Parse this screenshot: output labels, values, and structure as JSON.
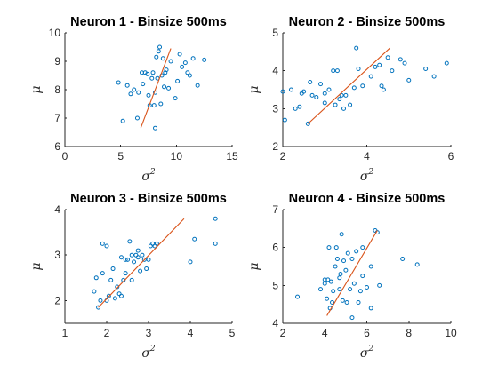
{
  "colors": {
    "points": "#0072BD",
    "fit": "#D95319",
    "axes": "#262626"
  },
  "chart_data": [
    {
      "type": "scatter",
      "title": "Neuron 1 - Binsize 500ms",
      "xlabel": "σ",
      "xlabel_sup": "2",
      "ylabel": "μ",
      "xlim": [
        0,
        15
      ],
      "ylim": [
        6,
        10
      ],
      "xticks": [
        0,
        5,
        10,
        15
      ],
      "yticks": [
        6,
        7,
        8,
        9,
        10
      ],
      "grid": false,
      "fit_line": {
        "x": [
          6.8,
          9.5
        ],
        "y": [
          6.65,
          9.45
        ]
      },
      "points": [
        [
          4.8,
          8.25
        ],
        [
          5.2,
          6.9
        ],
        [
          5.6,
          8.15
        ],
        [
          5.9,
          7.85
        ],
        [
          6.2,
          8.0
        ],
        [
          6.5,
          7.0
        ],
        [
          6.6,
          7.9
        ],
        [
          6.9,
          8.6
        ],
        [
          7.0,
          8.2
        ],
        [
          7.2,
          8.6
        ],
        [
          7.4,
          8.55
        ],
        [
          7.5,
          7.8
        ],
        [
          7.6,
          7.45
        ],
        [
          7.8,
          8.4
        ],
        [
          7.9,
          8.6
        ],
        [
          8.0,
          7.45
        ],
        [
          8.1,
          7.9
        ],
        [
          8.1,
          6.65
        ],
        [
          8.2,
          9.15
        ],
        [
          8.3,
          8.4
        ],
        [
          8.4,
          9.35
        ],
        [
          8.5,
          9.5
        ],
        [
          8.6,
          7.5
        ],
        [
          8.7,
          8.5
        ],
        [
          8.8,
          9.1
        ],
        [
          8.9,
          8.1
        ],
        [
          9.0,
          8.6
        ],
        [
          9.1,
          8.7
        ],
        [
          9.3,
          8.05
        ],
        [
          9.5,
          9.0
        ],
        [
          9.9,
          7.7
        ],
        [
          10.1,
          8.3
        ],
        [
          10.3,
          9.25
        ],
        [
          10.5,
          8.8
        ],
        [
          10.8,
          8.95
        ],
        [
          11.0,
          8.6
        ],
        [
          11.2,
          8.5
        ],
        [
          11.5,
          9.1
        ],
        [
          11.9,
          8.15
        ],
        [
          12.5,
          9.05
        ]
      ]
    },
    {
      "type": "scatter",
      "title": "Neuron 2 - Binsize 500ms",
      "xlabel": "σ",
      "xlabel_sup": "2",
      "ylabel": "μ",
      "xlim": [
        2,
        6
      ],
      "ylim": [
        2,
        5
      ],
      "xticks": [
        2,
        4,
        6
      ],
      "yticks": [
        2,
        3,
        4,
        5
      ],
      "grid": false,
      "fit_line": {
        "x": [
          2.6,
          4.55
        ],
        "y": [
          2.6,
          4.6
        ]
      },
      "points": [
        [
          2.0,
          3.45
        ],
        [
          2.05,
          2.7
        ],
        [
          2.2,
          3.5
        ],
        [
          2.3,
          3.0
        ],
        [
          2.4,
          3.05
        ],
        [
          2.45,
          3.4
        ],
        [
          2.6,
          2.6
        ],
        [
          2.65,
          3.7
        ],
        [
          2.7,
          3.35
        ],
        [
          2.8,
          3.3
        ],
        [
          2.9,
          3.65
        ],
        [
          3.0,
          3.15
        ],
        [
          3.1,
          3.5
        ],
        [
          3.2,
          4.0
        ],
        [
          3.25,
          3.1
        ],
        [
          3.3,
          4.0
        ],
        [
          3.35,
          3.25
        ],
        [
          3.4,
          3.35
        ],
        [
          3.45,
          3.0
        ],
        [
          3.5,
          3.35
        ],
        [
          3.6,
          3.1
        ],
        [
          3.7,
          3.55
        ],
        [
          3.75,
          4.6
        ],
        [
          3.8,
          4.05
        ],
        [
          3.9,
          3.6
        ],
        [
          4.1,
          3.85
        ],
        [
          4.2,
          4.1
        ],
        [
          4.3,
          4.15
        ],
        [
          4.35,
          3.6
        ],
        [
          4.4,
          3.5
        ],
        [
          4.5,
          4.35
        ],
        [
          4.6,
          4.0
        ],
        [
          4.9,
          4.2
        ],
        [
          5.0,
          3.75
        ],
        [
          5.4,
          4.05
        ],
        [
          5.6,
          3.85
        ],
        [
          5.9,
          4.2
        ],
        [
          4.8,
          4.3
        ],
        [
          3.0,
          3.4
        ],
        [
          2.5,
          3.45
        ]
      ]
    },
    {
      "type": "scatter",
      "title": "Neuron 3 - Binsize 500ms",
      "xlabel": "σ",
      "xlabel_sup": "2",
      "ylabel": "μ",
      "xlim": [
        1,
        5
      ],
      "ylim": [
        1.5,
        4
      ],
      "xticks": [
        1,
        2,
        3,
        4,
        5
      ],
      "yticks": [
        2,
        3,
        4
      ],
      "grid": false,
      "fit_line": {
        "x": [
          1.8,
          3.85
        ],
        "y": [
          1.85,
          3.8
        ]
      },
      "points": [
        [
          1.7,
          2.2
        ],
        [
          1.75,
          2.5
        ],
        [
          1.8,
          1.85
        ],
        [
          1.85,
          2.0
        ],
        [
          1.9,
          2.6
        ],
        [
          1.9,
          3.25
        ],
        [
          2.0,
          3.2
        ],
        [
          2.05,
          2.1
        ],
        [
          2.1,
          2.45
        ],
        [
          2.15,
          2.7
        ],
        [
          2.2,
          2.05
        ],
        [
          2.25,
          2.3
        ],
        [
          2.3,
          2.15
        ],
        [
          2.35,
          2.95
        ],
        [
          2.4,
          2.45
        ],
        [
          2.45,
          2.6
        ],
        [
          2.5,
          2.9
        ],
        [
          2.55,
          3.3
        ],
        [
          2.6,
          2.45
        ],
        [
          2.65,
          2.85
        ],
        [
          2.7,
          3.0
        ],
        [
          2.75,
          3.1
        ],
        [
          2.8,
          2.65
        ],
        [
          2.85,
          3.0
        ],
        [
          2.9,
          2.9
        ],
        [
          2.95,
          2.7
        ],
        [
          3.0,
          2.9
        ],
        [
          3.05,
          3.2
        ],
        [
          3.1,
          3.25
        ],
        [
          3.15,
          3.2
        ],
        [
          3.2,
          3.25
        ],
        [
          2.35,
          2.1
        ],
        [
          2.75,
          2.95
        ],
        [
          2.45,
          2.9
        ],
        [
          4.0,
          2.85
        ],
        [
          4.1,
          3.35
        ],
        [
          4.6,
          3.8
        ],
        [
          4.6,
          3.25
        ],
        [
          2.0,
          2.0
        ],
        [
          2.6,
          3.0
        ]
      ]
    },
    {
      "type": "scatter",
      "title": "Neuron 4 - Binsize 500ms",
      "xlabel": "σ",
      "xlabel_sup": "2",
      "ylabel": "μ",
      "xlim": [
        2,
        10
      ],
      "ylim": [
        4,
        7
      ],
      "xticks": [
        2,
        4,
        6,
        8,
        10
      ],
      "yticks": [
        4,
        5,
        6,
        7
      ],
      "grid": false,
      "fit_line": {
        "x": [
          4.1,
          6.5
        ],
        "y": [
          4.2,
          6.45
        ]
      },
      "points": [
        [
          2.7,
          4.7
        ],
        [
          3.8,
          4.9
        ],
        [
          4.0,
          5.05
        ],
        [
          4.1,
          4.65
        ],
        [
          4.15,
          5.15
        ],
        [
          4.2,
          6.0
        ],
        [
          4.25,
          4.4
        ],
        [
          4.3,
          5.1
        ],
        [
          4.35,
          4.55
        ],
        [
          4.4,
          4.85
        ],
        [
          4.5,
          5.5
        ],
        [
          4.55,
          6.0
        ],
        [
          4.6,
          5.7
        ],
        [
          4.7,
          4.9
        ],
        [
          4.75,
          5.3
        ],
        [
          4.8,
          6.35
        ],
        [
          4.85,
          4.6
        ],
        [
          4.9,
          5.65
        ],
        [
          5.0,
          5.4
        ],
        [
          5.05,
          4.55
        ],
        [
          5.1,
          5.85
        ],
        [
          5.2,
          4.9
        ],
        [
          5.3,
          4.15
        ],
        [
          5.4,
          5.05
        ],
        [
          5.5,
          5.9
        ],
        [
          5.6,
          4.55
        ],
        [
          5.7,
          4.85
        ],
        [
          5.8,
          5.25
        ],
        [
          6.0,
          4.95
        ],
        [
          6.2,
          4.4
        ],
        [
          6.4,
          6.45
        ],
        [
          6.5,
          6.4
        ],
        [
          6.6,
          5.0
        ],
        [
          7.7,
          5.7
        ],
        [
          8.4,
          5.55
        ],
        [
          5.3,
          5.7
        ],
        [
          4.0,
          5.15
        ],
        [
          4.7,
          5.2
        ],
        [
          5.8,
          6.0
        ],
        [
          6.2,
          5.5
        ]
      ]
    }
  ]
}
